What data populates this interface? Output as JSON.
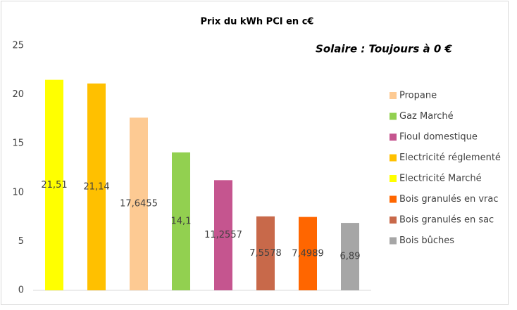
{
  "chart_data": {
    "type": "bar",
    "title": "Prix du kWh PCI en c€",
    "annotation": "Solaire : Toujours à 0 €",
    "ylim": [
      0,
      25
    ],
    "yticks": [
      0,
      5,
      10,
      15,
      20,
      25
    ],
    "grid": false,
    "legend": "right",
    "legend_order": [
      2,
      3,
      4,
      1,
      0,
      6,
      5,
      7
    ],
    "series": [
      {
        "name": "Electricité Marché",
        "color": "#ffff00",
        "values": [
          21.51
        ],
        "value_labels": [
          "21,51"
        ]
      },
      {
        "name": "Electricité réglementé",
        "color": "#ffc000",
        "values": [
          21.14
        ],
        "value_labels": [
          "21,14"
        ]
      },
      {
        "name": "Propane",
        "color": "#fdca93",
        "values": [
          17.6455
        ],
        "value_labels": [
          "17,6455"
        ]
      },
      {
        "name": "Gaz Marché",
        "color": "#92d050",
        "values": [
          14.1
        ],
        "value_labels": [
          "14,1"
        ]
      },
      {
        "name": "Fioul domestique",
        "color": "#c5558f",
        "values": [
          11.2557
        ],
        "value_labels": [
          "11,2557"
        ]
      },
      {
        "name": "Bois granulés en sac",
        "color": "#c8694a",
        "values": [
          7.5578
        ],
        "value_labels": [
          "7,5578"
        ]
      },
      {
        "name": "Bois granulés en vrac",
        "color": "#ff6600",
        "values": [
          7.4989
        ],
        "value_labels": [
          "7,4989"
        ]
      },
      {
        "name": "Bois bûches",
        "color": "#a6a6a6",
        "values": [
          6.89
        ],
        "value_labels": [
          "6,89"
        ]
      }
    ]
  }
}
